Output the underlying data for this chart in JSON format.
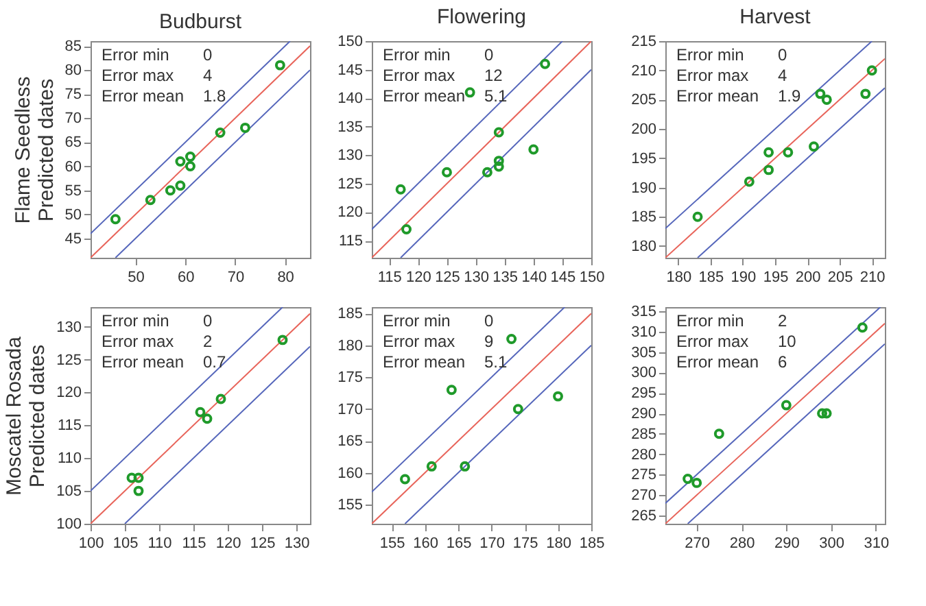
{
  "chart_data": [
    {
      "type": "scatter",
      "title": "Budburst",
      "ylabel": "Flame Seedless\nPredicted dates",
      "xlim": [
        41,
        85
      ],
      "ylim": [
        41,
        86
      ],
      "xticks": [
        50,
        60,
        70,
        80
      ],
      "yticks": [
        45,
        50,
        55,
        60,
        65,
        70,
        75,
        80,
        85
      ],
      "grid": false,
      "legend": false,
      "marker": "circle",
      "annotations": [
        "Error min 0",
        "Error max 4",
        "Error mean 1.8"
      ],
      "series": [
        {
          "type": "line",
          "marker": "none",
          "color": "#e8645a",
          "x": [
            41,
            85
          ],
          "values": [
            41,
            85
          ]
        },
        {
          "type": "line",
          "marker": "none",
          "color": "#5566bb",
          "x": [
            41,
            81
          ],
          "values": [
            46,
            86
          ]
        },
        {
          "type": "line",
          "marker": "none",
          "color": "#5566bb",
          "x": [
            46,
            85
          ],
          "values": [
            41,
            80
          ]
        },
        {
          "type": "scatter",
          "color": "#1f9a2a",
          "x": [
            46,
            53,
            57,
            59,
            59,
            61,
            61,
            67,
            72,
            79
          ],
          "values": [
            49,
            53,
            55,
            56,
            61,
            62,
            60,
            67,
            68,
            81
          ]
        }
      ]
    },
    {
      "type": "scatter",
      "title": "Flowering",
      "xlim": [
        112,
        150
      ],
      "ylim": [
        112,
        150
      ],
      "xticks": [
        115,
        120,
        125,
        130,
        135,
        140,
        145,
        150
      ],
      "yticks": [
        115,
        120,
        125,
        130,
        135,
        140,
        145,
        150
      ],
      "grid": false,
      "legend": false,
      "marker": "circle",
      "annotations": [
        "Error min 0",
        "Error max 12",
        "Error mean 5.1"
      ],
      "series": [
        {
          "type": "line",
          "marker": "none",
          "color": "#e8645a",
          "x": [
            112,
            150
          ],
          "values": [
            112,
            150
          ]
        },
        {
          "type": "line",
          "marker": "none",
          "color": "#5566bb",
          "x": [
            112,
            145
          ],
          "values": [
            117,
            150
          ]
        },
        {
          "type": "line",
          "marker": "none",
          "color": "#5566bb",
          "x": [
            117,
            150
          ],
          "values": [
            112,
            145
          ]
        },
        {
          "type": "scatter",
          "color": "#1f9a2a",
          "x": [
            117,
            118,
            125,
            129,
            132,
            134,
            134,
            134,
            140,
            142
          ],
          "values": [
            124,
            117,
            127,
            141,
            127,
            134,
            129,
            128,
            131,
            146
          ]
        }
      ]
    },
    {
      "type": "scatter",
      "title": "Harvest",
      "xlim": [
        178,
        212
      ],
      "ylim": [
        178,
        215
      ],
      "xticks": [
        180,
        185,
        190,
        195,
        200,
        205,
        210
      ],
      "yticks": [
        180,
        185,
        190,
        195,
        200,
        205,
        210,
        215
      ],
      "grid": false,
      "legend": false,
      "marker": "circle",
      "annotations": [
        "Error min 0",
        "Error max 4",
        "Error mean 1.9"
      ],
      "series": [
        {
          "type": "line",
          "marker": "none",
          "color": "#e8645a",
          "x": [
            178,
            212
          ],
          "values": [
            178,
            212
          ]
        },
        {
          "type": "line",
          "marker": "none",
          "color": "#5566bb",
          "x": [
            178,
            210
          ],
          "values": [
            183,
            215
          ]
        },
        {
          "type": "line",
          "marker": "none",
          "color": "#5566bb",
          "x": [
            183,
            212
          ],
          "values": [
            178,
            207
          ]
        },
        {
          "type": "scatter",
          "color": "#1f9a2a",
          "x": [
            183,
            191,
            194,
            194,
            197,
            201,
            202,
            203,
            209,
            210
          ],
          "values": [
            185,
            191,
            196,
            193,
            196,
            197,
            206,
            205,
            206,
            210
          ]
        }
      ]
    },
    {
      "type": "scatter",
      "ylabel": "Moscatel Rosada\nPredicted dates",
      "xlim": [
        100,
        132
      ],
      "ylim": [
        100,
        133
      ],
      "xticks": [
        100,
        105,
        110,
        115,
        120,
        125,
        130
      ],
      "yticks": [
        100,
        105,
        110,
        115,
        120,
        125,
        130
      ],
      "grid": false,
      "legend": false,
      "marker": "circle",
      "annotations": [
        "Error min 0",
        "Error max 2",
        "Error mean 0.7"
      ],
      "series": [
        {
          "type": "line",
          "marker": "none",
          "color": "#e8645a",
          "x": [
            100,
            132
          ],
          "values": [
            100,
            132
          ]
        },
        {
          "type": "line",
          "marker": "none",
          "color": "#5566bb",
          "x": [
            100,
            128
          ],
          "values": [
            105,
            133
          ]
        },
        {
          "type": "line",
          "marker": "none",
          "color": "#5566bb",
          "x": [
            105,
            132
          ],
          "values": [
            100,
            127
          ]
        },
        {
          "type": "scatter",
          "color": "#1f9a2a",
          "x": [
            106,
            107,
            107,
            116,
            117,
            119,
            128
          ],
          "values": [
            107,
            107,
            105,
            117,
            116,
            119,
            128
          ]
        }
      ]
    },
    {
      "type": "scatter",
      "xlim": [
        152,
        185
      ],
      "ylim": [
        152,
        186
      ],
      "xticks": [
        155,
        160,
        165,
        170,
        175,
        180,
        185
      ],
      "yticks": [
        155,
        160,
        165,
        170,
        175,
        180,
        185
      ],
      "grid": false,
      "legend": false,
      "marker": "circle",
      "annotations": [
        "Error min 0",
        "Error max 9",
        "Error mean 5.1"
      ],
      "series": [
        {
          "type": "line",
          "marker": "none",
          "color": "#e8645a",
          "x": [
            152,
            185
          ],
          "values": [
            152,
            185
          ]
        },
        {
          "type": "line",
          "marker": "none",
          "color": "#5566bb",
          "x": [
            152,
            181
          ],
          "values": [
            157,
            186
          ]
        },
        {
          "type": "line",
          "marker": "none",
          "color": "#5566bb",
          "x": [
            157,
            185
          ],
          "values": [
            152,
            180
          ]
        },
        {
          "type": "scatter",
          "color": "#1f9a2a",
          "x": [
            157,
            161,
            164,
            166,
            173,
            174,
            180
          ],
          "values": [
            159,
            161,
            173,
            161,
            181,
            170,
            172
          ]
        }
      ]
    },
    {
      "type": "scatter",
      "xlim": [
        263,
        312
      ],
      "ylim": [
        263,
        316
      ],
      "xticks": [
        270,
        280,
        290,
        300,
        310
      ],
      "yticks": [
        265,
        270,
        275,
        280,
        285,
        290,
        295,
        300,
        305,
        310,
        315
      ],
      "grid": false,
      "legend": false,
      "marker": "circle",
      "annotations": [
        "Error min 2",
        "Error max 10",
        "Error mean 6"
      ],
      "series": [
        {
          "type": "line",
          "marker": "none",
          "color": "#e8645a",
          "x": [
            263,
            312
          ],
          "values": [
            263,
            312
          ]
        },
        {
          "type": "line",
          "marker": "none",
          "color": "#5566bb",
          "x": [
            263,
            311
          ],
          "values": [
            268,
            316
          ]
        },
        {
          "type": "line",
          "marker": "none",
          "color": "#5566bb",
          "x": [
            268,
            312
          ],
          "values": [
            263,
            307
          ]
        },
        {
          "type": "scatter",
          "color": "#1f9a2a",
          "x": [
            268,
            270,
            275,
            290,
            298,
            299,
            307
          ],
          "values": [
            274,
            273,
            285,
            292,
            290,
            290,
            311
          ]
        }
      ]
    }
  ]
}
